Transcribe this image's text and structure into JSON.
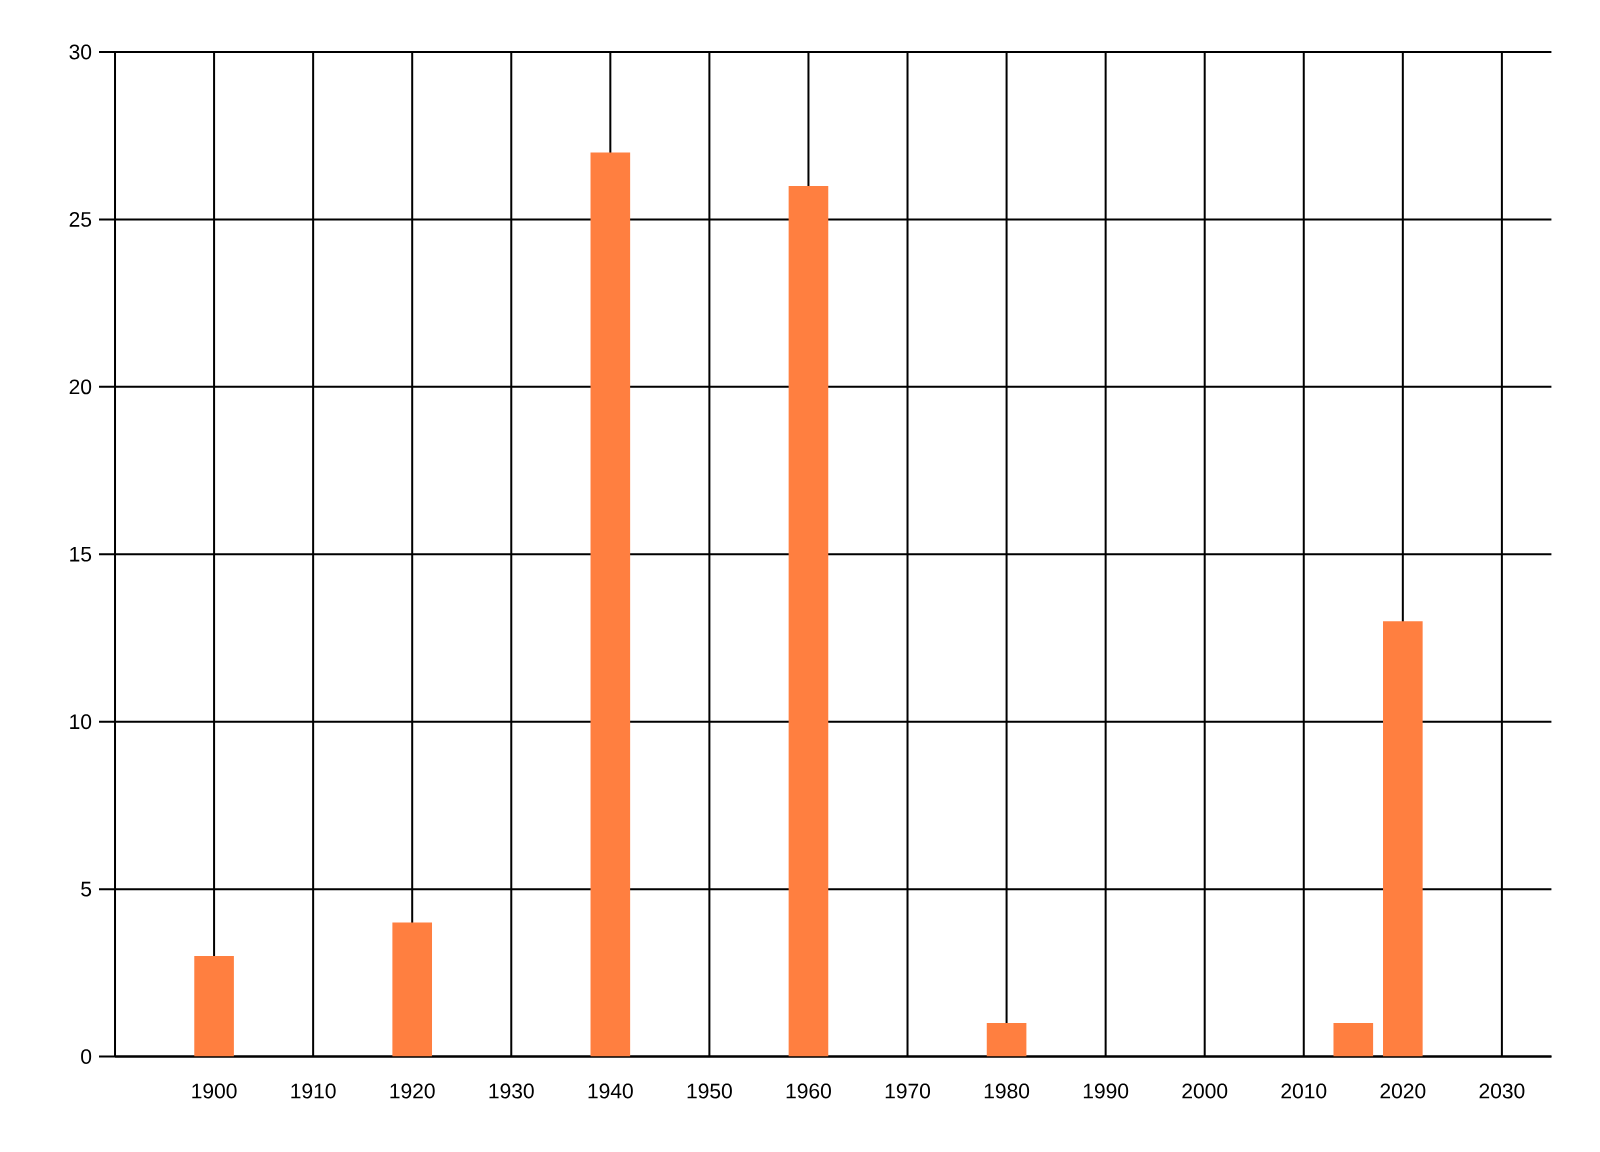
{
  "chart_data": {
    "type": "bar",
    "x": [
      1900,
      1920,
      1940,
      1960,
      1980,
      2015,
      2020
    ],
    "values": [
      3,
      4,
      27,
      26,
      1,
      1,
      13
    ],
    "color": "#ff7f40",
    "xlim": [
      1890,
      2035
    ],
    "xticks": [
      1900,
      1910,
      1920,
      1930,
      1940,
      1950,
      1960,
      1970,
      1980,
      1990,
      2000,
      2010,
      2020,
      2030
    ],
    "ylim": [
      0,
      30
    ],
    "yticks": [
      0,
      5,
      10,
      15,
      20,
      25,
      30
    ],
    "grid": true
  }
}
